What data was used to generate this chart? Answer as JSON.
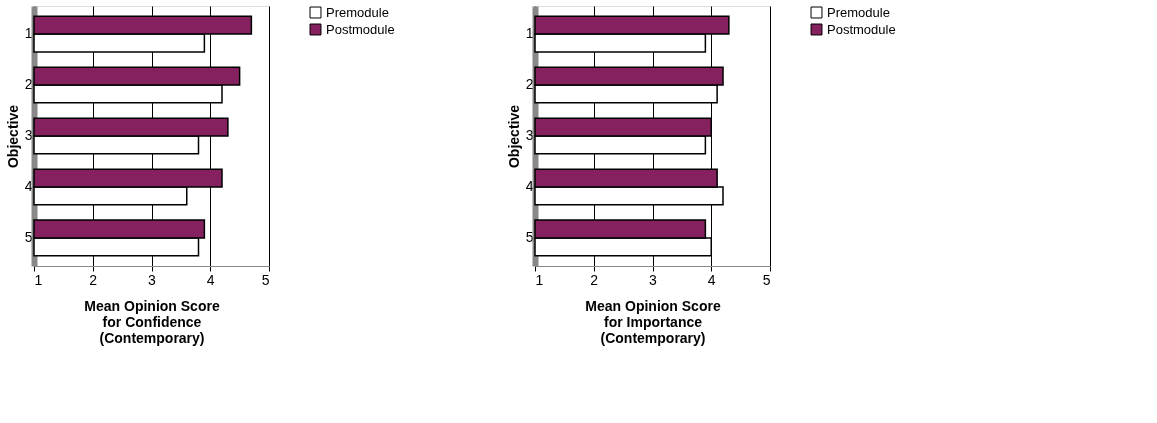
{
  "chart_data": [
    {
      "type": "bar",
      "orientation": "horizontal",
      "categories": [
        "1",
        "2",
        "3",
        "4",
        "5"
      ],
      "xlabel": "Mean Opinion Score\nfor Confidence\n(Contemporary)",
      "ylabel": "Objective",
      "xlim": [
        1,
        5
      ],
      "xticks": [
        1,
        2,
        3,
        4,
        5
      ],
      "grid": "x",
      "legend": "right",
      "series": [
        {
          "name": "Premodule",
          "color": "#ffffff",
          "values": [
            3.9,
            4.2,
            3.8,
            3.6,
            3.8
          ]
        },
        {
          "name": "Postmodule",
          "color": "#862160",
          "values": [
            4.7,
            4.5,
            4.3,
            4.2,
            3.9
          ]
        }
      ]
    },
    {
      "type": "bar",
      "orientation": "horizontal",
      "categories": [
        "1",
        "2",
        "3",
        "4",
        "5"
      ],
      "xlabel": "Mean Opinion Score\nfor Importance\n(Contemporary)",
      "ylabel": "Objective",
      "xlim": [
        1,
        5
      ],
      "xticks": [
        1,
        2,
        3,
        4,
        5
      ],
      "grid": "x",
      "legend": "right",
      "series": [
        {
          "name": "Premodule",
          "color": "#ffffff",
          "values": [
            3.9,
            4.1,
            3.9,
            4.2,
            4.0
          ]
        },
        {
          "name": "Postmodule",
          "color": "#862160",
          "values": [
            4.3,
            4.2,
            4.0,
            4.1,
            3.9
          ]
        }
      ]
    }
  ]
}
